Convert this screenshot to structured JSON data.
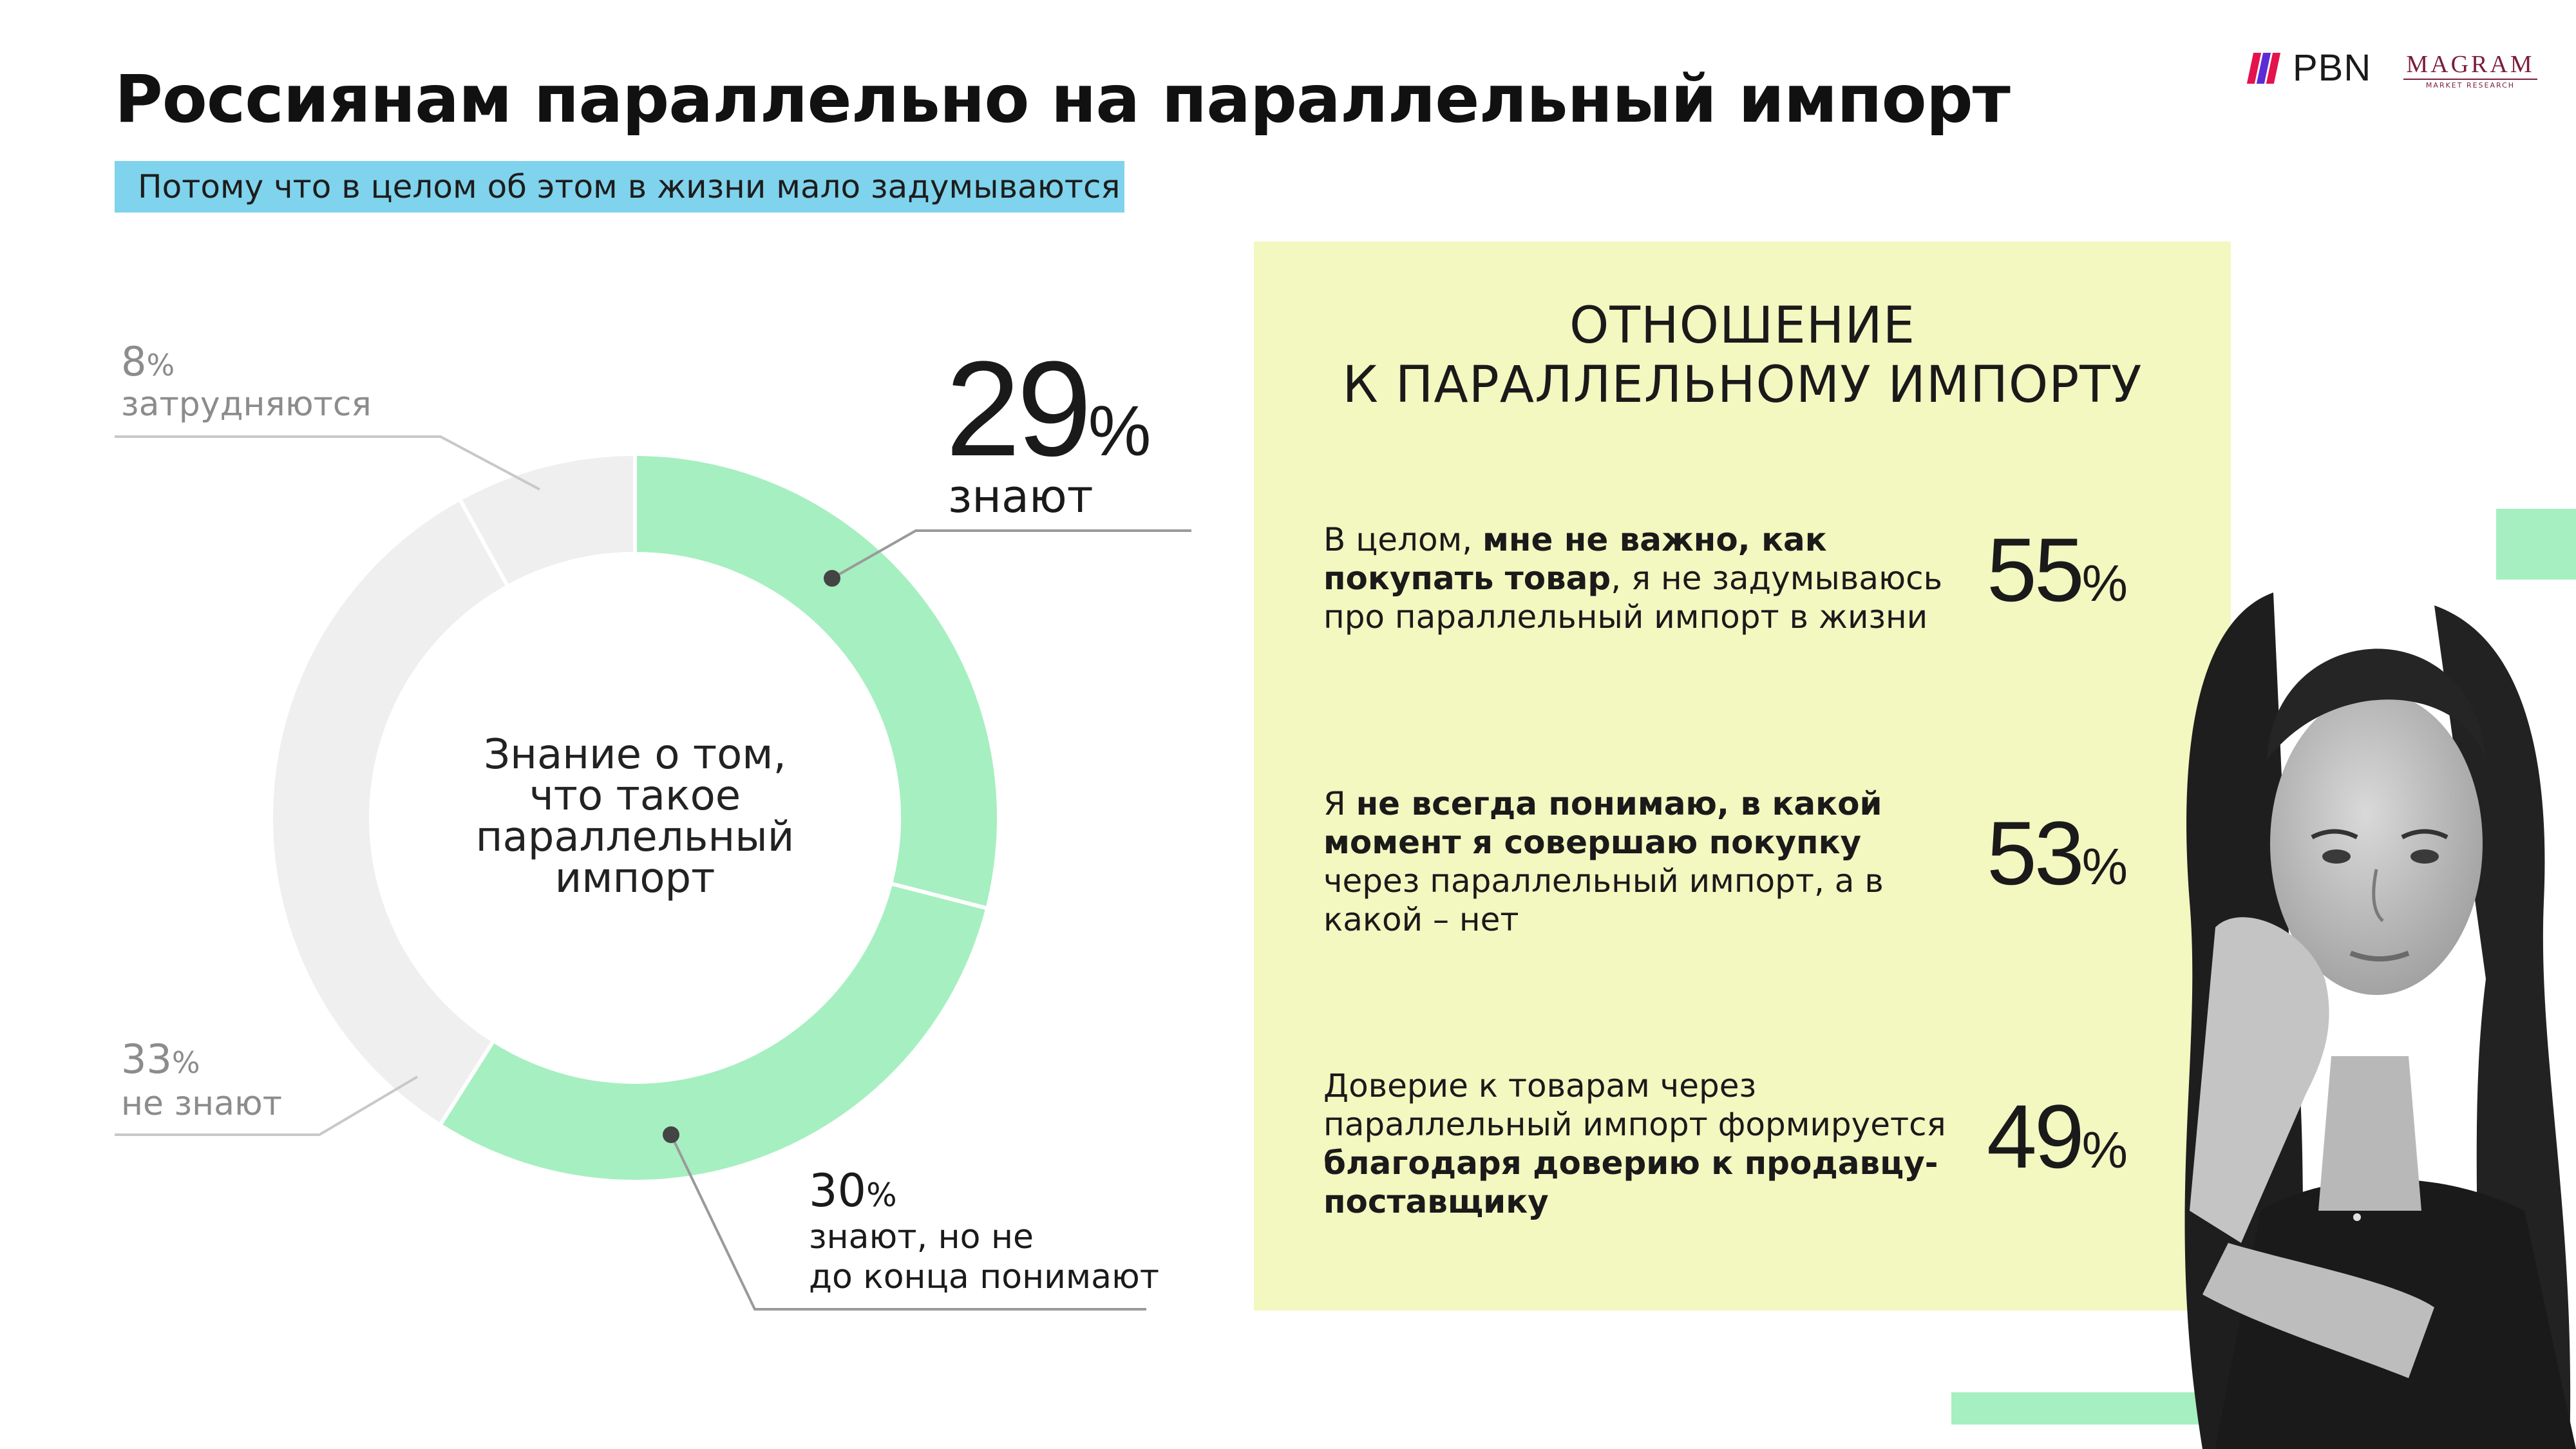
{
  "header": {
    "title": "Россиянам параллельно на параллельный импорт",
    "subtitle": "Потому что в целом об этом в жизни мало задумываются"
  },
  "logos": {
    "pbn": "PBN",
    "magram": "MAGRAM",
    "magram_sub": "MARKET RESEARCH"
  },
  "chart_data": {
    "type": "pie",
    "center_label": [
      "Знание о том,",
      "что такое",
      "параллельный",
      "импорт"
    ],
    "slices": [
      {
        "value": 29,
        "label": "знают",
        "color": "#a6efc0"
      },
      {
        "value": 30,
        "label": "знают, но не до конца понимают",
        "color": "#a6efc0"
      },
      {
        "value": 33,
        "label": "не знают",
        "color": "#efefef"
      },
      {
        "value": 8,
        "label": "затрудняются",
        "color": "#efefef"
      }
    ],
    "labels": {
      "know": {
        "value": "29",
        "pct": "%",
        "text": "знают"
      },
      "partial": {
        "value": "30",
        "pct": "%",
        "text_line1": "знают, но не",
        "text_line2": "до конца понимают"
      },
      "dontknow": {
        "value": "33",
        "pct": "%",
        "text": "не знают"
      },
      "unsure": {
        "value": "8",
        "pct": "%",
        "text": "затрудняются"
      }
    }
  },
  "panel": {
    "title_line1": "ОТНОШЕНИЕ",
    "title_line2": "К ПАРАЛЛЕЛЬНОМУ ИМПОРТУ",
    "statements": [
      {
        "pre": "В целом, ",
        "bold": "мне не важно, как покупать товар",
        "post": ", я не задумываюсь про параллельный импорт в жизни",
        "value": "55",
        "pct": "%"
      },
      {
        "pre": "Я ",
        "bold": "не всегда понимаю, в какой момент я совершаю покупку",
        "post": " через параллельный импорт, а в какой – нет",
        "value": "53",
        "pct": "%"
      },
      {
        "pre": "Доверие к товарам через параллельный импорт формируется ",
        "bold": "благодаря доверию к продавцу-поставщику",
        "post": "",
        "value": "49",
        "pct": "%"
      }
    ]
  },
  "colors": {
    "accent_green": "#a6efc0",
    "panel_yellow": "#f3f7c0",
    "subtitle_blue": "#7fd3ec",
    "slice_grey": "#efefef"
  }
}
